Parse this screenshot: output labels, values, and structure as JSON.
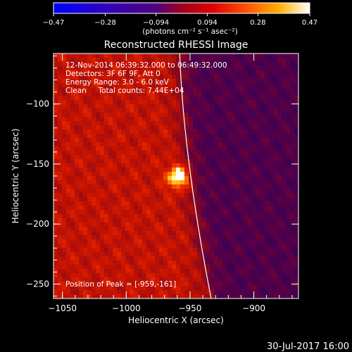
{
  "chart_data": {
    "type": "heatmap",
    "title": "Reconstructed RHESSI Image",
    "xlabel": "Heliocentric X (arcsec)",
    "ylabel": "Heliocentric Y (arcsec)",
    "xlim": [
      -1057,
      -865
    ],
    "ylim": [
      -262,
      -58
    ],
    "x_ticks": [
      -1050,
      -1000,
      -950,
      -900
    ],
    "y_ticks": [
      -100,
      -150,
      -200,
      -250
    ],
    "x_tick_labels": [
      "−1050",
      "−1000",
      "−950",
      "−900"
    ],
    "y_tick_labels": [
      "−100",
      "−150",
      "−200",
      "−250"
    ],
    "colorbar": {
      "ticks": [
        -0.47,
        -0.28,
        -0.094,
        0.094,
        0.28,
        0.47
      ],
      "tick_labels": [
        "−0.47",
        "−0.28",
        "−0.094",
        "0.094",
        "0.28",
        "0.47"
      ],
      "label": "(photons cm⁻² s⁻¹ asec⁻²)",
      "range": [
        -0.47,
        0.47
      ],
      "colors": [
        "#0000ff",
        "#6000b0",
        "#b00000",
        "#ff5000",
        "#ffc000",
        "#ffffff"
      ]
    },
    "peak": {
      "x": -959,
      "y": -161,
      "value": 0.47
    },
    "limb_line_color": "#ffffff",
    "annotations": [
      "12-Nov-2014 06:39:32.000 to 06:49:32.000",
      "Detectors: 3F 6F 9F, Att 0",
      "Energy Range: 3.0 - 6.0 keV",
      "Clean     Total counts: 7.44E+04",
      "Position of Peak = [-959,-161]"
    ]
  },
  "footer_date": "30-Jul-2017 16:00"
}
